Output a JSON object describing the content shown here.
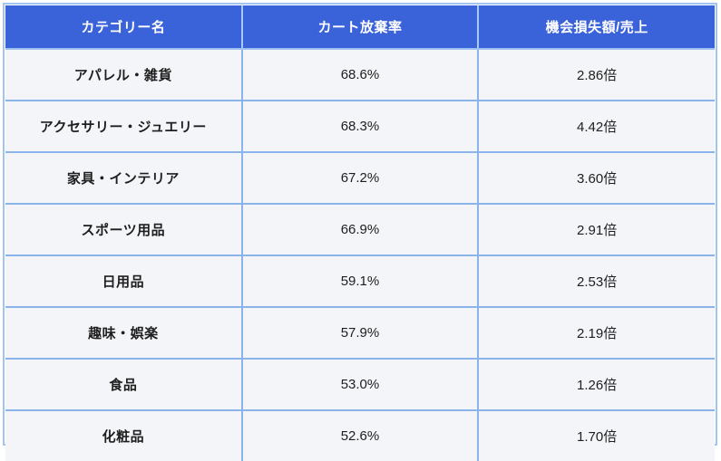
{
  "chart_data": {
    "type": "table",
    "title": "",
    "columns": [
      "カテゴリー名",
      "カート放棄率",
      "機会損失額/売上"
    ],
    "rows": [
      {
        "category": "アパレル・雑貨",
        "cart_abandonment_rate": "68.6%",
        "opportunity_loss_to_sales": "2.86倍"
      },
      {
        "category": "アクセサリー・ジュエリー",
        "cart_abandonment_rate": "68.3%",
        "opportunity_loss_to_sales": "4.42倍"
      },
      {
        "category": "家具・インテリア",
        "cart_abandonment_rate": "67.2%",
        "opportunity_loss_to_sales": "3.60倍"
      },
      {
        "category": "スポーツ用品",
        "cart_abandonment_rate": "66.9%",
        "opportunity_loss_to_sales": "2.91倍"
      },
      {
        "category": "日用品",
        "cart_abandonment_rate": "59.1%",
        "opportunity_loss_to_sales": "2.53倍"
      },
      {
        "category": "趣味・娯楽",
        "cart_abandonment_rate": "57.9%",
        "opportunity_loss_to_sales": "2.19倍"
      },
      {
        "category": "食品",
        "cart_abandonment_rate": "53.0%",
        "opportunity_loss_to_sales": "1.26倍"
      },
      {
        "category": "化粧品",
        "cart_abandonment_rate": "52.6%",
        "opportunity_loss_to_sales": "1.70倍"
      }
    ]
  },
  "colors": {
    "header_bg": "#3a62d9",
    "header_text": "#ffffff",
    "row_bg": "#f4f5f9",
    "inner_border": "#8ab4ea",
    "outer_border": "#a2c4f0",
    "body_text": "#1e1e1e"
  }
}
